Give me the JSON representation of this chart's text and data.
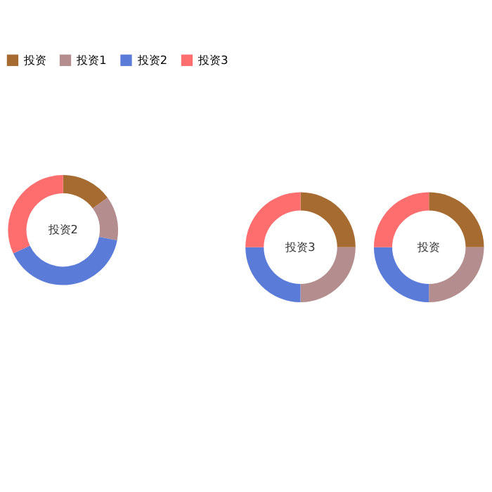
{
  "chart_data": [
    {
      "type": "donut",
      "title": "投资2",
      "categories": [
        "投资",
        "投资1",
        "投资2",
        "投资3"
      ],
      "values": [
        15,
        13,
        40,
        32
      ],
      "colors": [
        "#a56b30",
        "#b48e8e",
        "#5b7bd9",
        "#ff6e6e"
      ],
      "legend": "top"
    },
    {
      "type": "donut",
      "title": "投资3",
      "categories": [
        null,
        null,
        null,
        null
      ],
      "values": [
        25,
        25,
        25,
        25
      ],
      "colors": [
        "#a56b30",
        "#b48e8e",
        "#5b7bd9",
        "#ff6e6e"
      ]
    },
    {
      "type": "donut",
      "title": "投资",
      "categories": [
        null,
        null,
        null,
        null
      ],
      "values": [
        25,
        25,
        25,
        25
      ],
      "colors": [
        "#a56b30",
        "#b48e8e",
        "#5b7bd9",
        "#ff6e6e"
      ]
    }
  ]
}
